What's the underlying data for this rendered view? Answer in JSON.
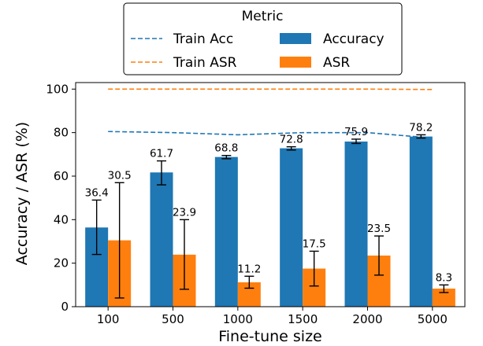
{
  "chart_data": {
    "type": "bar",
    "xlabel": "Fine-tune size",
    "ylabel": "Accuracy / ASR (%)",
    "categories": [
      "100",
      "500",
      "1000",
      "1500",
      "2000",
      "5000"
    ],
    "ylim": [
      0,
      103
    ],
    "yticks": [
      0,
      20,
      40,
      60,
      80,
      100
    ],
    "grid": false,
    "legend": {
      "title": "Metric",
      "placement": "top-center",
      "entries": [
        "Train Acc",
        "Accuracy",
        "Train ASR",
        "ASR"
      ]
    },
    "series": [
      {
        "name": "Accuracy",
        "kind": "bar",
        "color": "#1f77b4",
        "values": [
          36.4,
          61.7,
          68.8,
          72.8,
          75.9,
          78.2
        ],
        "error_low": [
          24.0,
          56.0,
          68.0,
          72.0,
          75.0,
          77.5
        ],
        "error_high": [
          49.0,
          67.0,
          69.5,
          73.5,
          77.0,
          79.0
        ],
        "labels": [
          "36.4",
          "61.7",
          "68.8",
          "72.8",
          "75.9",
          "78.2"
        ]
      },
      {
        "name": "ASR",
        "kind": "bar",
        "color": "#ff7f0e",
        "values": [
          30.5,
          23.9,
          11.2,
          17.5,
          23.5,
          8.3
        ],
        "error_low": [
          4.0,
          8.0,
          8.5,
          9.5,
          14.5,
          6.5
        ],
        "error_high": [
          57.0,
          40.0,
          14.0,
          25.5,
          32.5,
          10.0
        ],
        "labels": [
          "30.5",
          "23.9",
          "11.2",
          "17.5",
          "23.5",
          "8.3"
        ]
      },
      {
        "name": "Train Acc",
        "kind": "line",
        "style": "dashed",
        "color": "#1f77b4",
        "values": [
          80.5,
          80.0,
          79.0,
          80.0,
          80.0,
          77.5
        ]
      },
      {
        "name": "Train ASR",
        "kind": "line",
        "style": "dashed",
        "color": "#ff7f0e",
        "values": [
          100.0,
          100.0,
          100.0,
          100.0,
          100.0,
          99.8
        ]
      }
    ]
  }
}
